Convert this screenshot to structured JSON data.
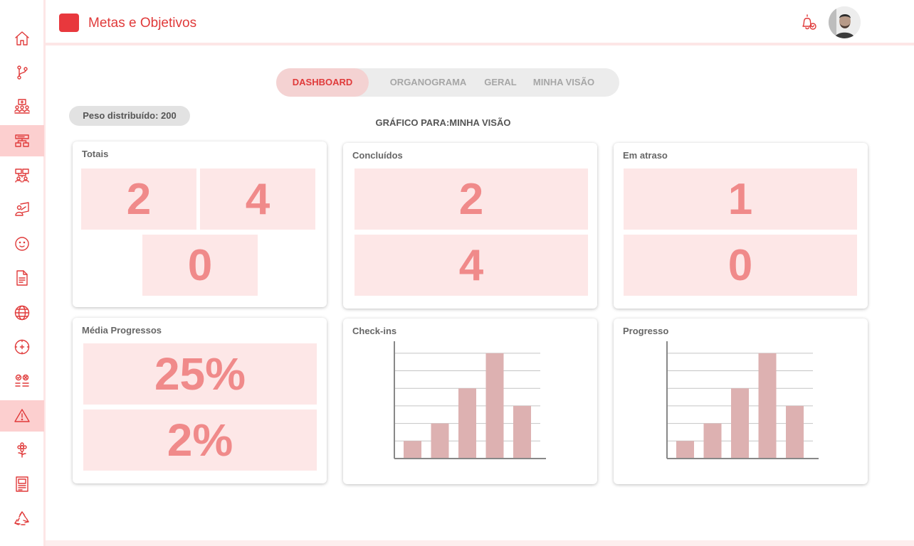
{
  "header": {
    "title": "Metas e Objetivos",
    "brand_color": "#e8383d"
  },
  "sidebar": {
    "items": [
      {
        "icon": "home-icon"
      },
      {
        "icon": "branch-icon"
      },
      {
        "icon": "team-presentation-icon"
      },
      {
        "icon": "dashboard-icon",
        "active": true
      },
      {
        "icon": "org-chart-icon"
      },
      {
        "icon": "teacher-icon"
      },
      {
        "icon": "smiley-icon"
      },
      {
        "icon": "document-icon"
      },
      {
        "icon": "globe-icon"
      },
      {
        "icon": "target-icon"
      },
      {
        "icon": "options-icon"
      },
      {
        "icon": "warning-icon",
        "active": true
      },
      {
        "icon": "flower-icon"
      },
      {
        "icon": "report-icon"
      },
      {
        "icon": "recycle-icon"
      }
    ]
  },
  "tabs": [
    {
      "label": "DASHBOARD",
      "active": true
    },
    {
      "label": "ORGANOGRAMA"
    },
    {
      "label": "GERAL"
    },
    {
      "label": "MINHA VISÃO"
    }
  ],
  "weight_label": "Peso distribuído: 200",
  "chart_for_label": "GRÁFICO PARA:MINHA VISÃO",
  "cards": {
    "totais": {
      "title": "Totais",
      "values": [
        "2",
        "4",
        "0"
      ]
    },
    "concluidos": {
      "title": "Concluídos",
      "values": [
        "2",
        "4"
      ]
    },
    "atraso": {
      "title": "Em atraso",
      "values": [
        "1",
        "0"
      ]
    },
    "media": {
      "title": "Média Progressos",
      "values": [
        "25%",
        "2%"
      ]
    },
    "checkins": {
      "title": "Check-ins"
    },
    "progresso": {
      "title": "Progresso"
    }
  },
  "chart_data": [
    {
      "type": "bar",
      "values": [
        1,
        2,
        4,
        6,
        3
      ],
      "ylim": [
        0,
        6.6
      ],
      "grid": true,
      "bar_color": "#ddb1b1"
    },
    {
      "type": "bar",
      "values": [
        1,
        2,
        4,
        6,
        3
      ],
      "ylim": [
        0,
        6.6
      ],
      "grid": true,
      "bar_color": "#ddb1b1"
    }
  ]
}
